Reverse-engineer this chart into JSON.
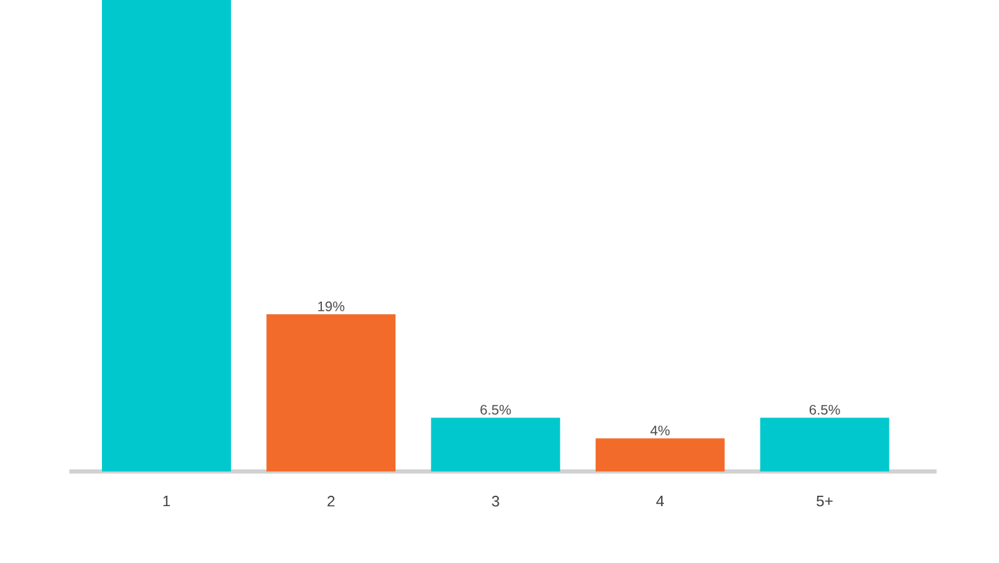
{
  "chart_data": {
    "type": "bar",
    "categories": [
      "1",
      "2",
      "3",
      "4",
      "5+"
    ],
    "values": [
      57,
      19,
      6.5,
      4,
      6.5
    ],
    "colors": [
      "#00c8cc",
      "#f26b2a",
      "#00c8cc",
      "#f26b2a",
      "#00c8cc"
    ],
    "value_labels": [
      null,
      "19%",
      "6.5%",
      "4%",
      "6.5%"
    ]
  }
}
